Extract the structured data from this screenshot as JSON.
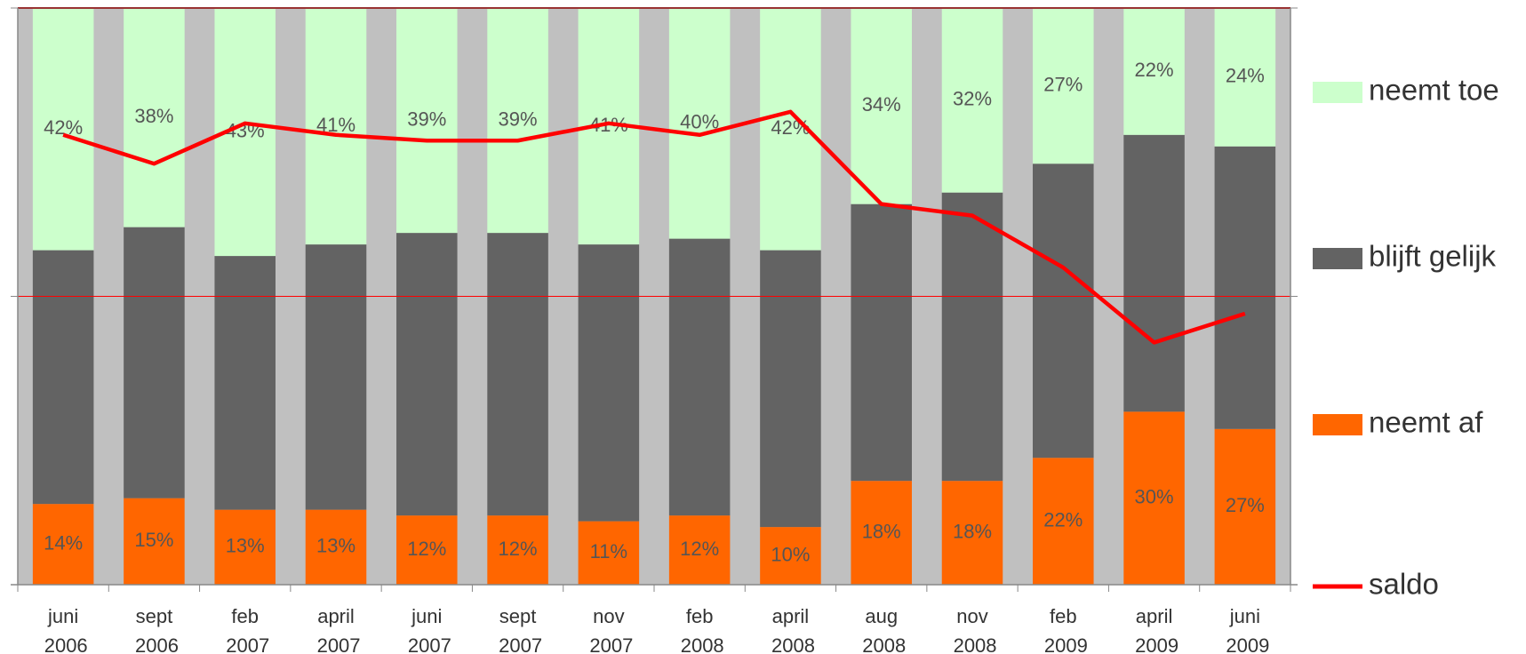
{
  "chart_data": {
    "type": "bar",
    "stacked": true,
    "categories": [
      "juni 2006",
      "sept 2006",
      "feb 2007",
      "april 2007",
      "juni 2007",
      "sept 2007",
      "nov 2007",
      "feb 2008",
      "april 2008",
      "aug 2008",
      "nov 2008",
      "feb 2009",
      "april 2009",
      "juni 2009"
    ],
    "ylim": [
      0,
      100
    ],
    "y2lim": [
      -50,
      50
    ],
    "series": [
      {
        "name": "neemt toe",
        "color": "#ccffcc",
        "values": [
          42,
          38,
          43,
          41,
          39,
          39,
          41,
          40,
          42,
          34,
          32,
          27,
          22,
          24
        ],
        "value_labels": [
          "42%",
          "38%",
          "43%",
          "41%",
          "39%",
          "39%",
          "41%",
          "40%",
          "42%",
          "34%",
          "32%",
          "27%",
          "22%",
          "24%"
        ]
      },
      {
        "name": "blijft gelijk",
        "color": "#636363",
        "values": [
          44,
          47,
          44,
          46,
          49,
          49,
          48,
          48,
          48,
          48,
          50,
          51,
          48,
          49
        ]
      },
      {
        "name": "neemt af",
        "color": "#ff6600",
        "values": [
          14,
          15,
          13,
          13,
          12,
          12,
          11,
          12,
          10,
          18,
          18,
          22,
          30,
          27
        ],
        "value_labels": [
          "14%",
          "15%",
          "13%",
          "13%",
          "12%",
          "12%",
          "11%",
          "12%",
          "10%",
          "18%",
          "18%",
          "22%",
          "30%",
          "27%"
        ]
      },
      {
        "name": "saldo",
        "type": "line",
        "axis": "y2",
        "color": "#ff0000",
        "values": [
          28,
          23,
          30,
          28,
          27,
          27,
          30,
          28,
          32,
          16,
          14,
          5,
          -8,
          -3
        ]
      }
    ]
  }
}
